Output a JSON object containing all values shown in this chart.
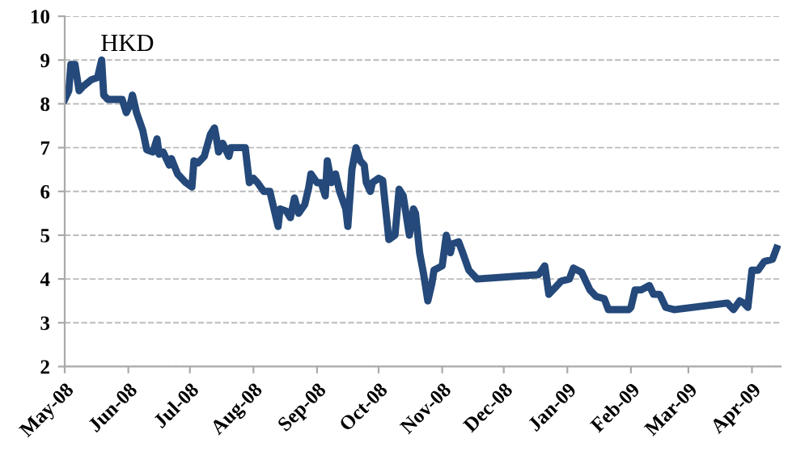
{
  "chart_data": {
    "type": "line",
    "annotations": [
      "HKD"
    ],
    "x": [
      "2008-05-01",
      "2008-05-03",
      "2008-05-04",
      "2008-05-06",
      "2008-05-08",
      "2008-05-10",
      "2008-05-14",
      "2008-05-17",
      "2008-05-19",
      "2008-05-20",
      "2008-05-22",
      "2008-05-25",
      "2008-05-29",
      "2008-05-31",
      "2008-06-02",
      "2008-06-03",
      "2008-06-05",
      "2008-06-08",
      "2008-06-10",
      "2008-06-13",
      "2008-06-15",
      "2008-06-16",
      "2008-06-18",
      "2008-06-21",
      "2008-06-22",
      "2008-06-25",
      "2008-06-29",
      "2008-07-02",
      "2008-07-03",
      "2008-07-05",
      "2008-07-08",
      "2008-07-11",
      "2008-07-13",
      "2008-07-14",
      "2008-07-15",
      "2008-07-17",
      "2008-07-20",
      "2008-07-21",
      "2008-07-24",
      "2008-07-28",
      "2008-07-30",
      "2008-08-01",
      "2008-08-03",
      "2008-08-06",
      "2008-08-09",
      "2008-08-13",
      "2008-08-14",
      "2008-08-17",
      "2008-08-19",
      "2008-08-21",
      "2008-08-23",
      "2008-08-26",
      "2008-08-28",
      "2008-08-29",
      "2008-09-01",
      "2008-09-03",
      "2008-09-05",
      "2008-09-06",
      "2008-09-08",
      "2008-09-10",
      "2008-09-12",
      "2008-09-15",
      "2008-09-16",
      "2008-09-18",
      "2008-09-20",
      "2008-09-22",
      "2008-09-24",
      "2008-09-25",
      "2008-09-27",
      "2008-09-28",
      "2008-10-01",
      "2008-10-03",
      "2008-10-06",
      "2008-10-09",
      "2008-10-11",
      "2008-10-13",
      "2008-10-16",
      "2008-10-18",
      "2008-10-19",
      "2008-10-21",
      "2008-10-23",
      "2008-10-25",
      "2008-10-27",
      "2008-10-28",
      "2008-11-01",
      "2008-11-03",
      "2008-11-05",
      "2008-11-06",
      "2008-11-09",
      "2008-11-11",
      "2008-11-14",
      "2008-11-18",
      "2008-12-18",
      "2008-12-21",
      "2008-12-23",
      "2008-12-26",
      "2008-12-29",
      "2009-01-02",
      "2009-01-04",
      "2009-01-08",
      "2009-01-12",
      "2009-01-15",
      "2009-01-19",
      "2009-01-21",
      "2009-01-31",
      "2009-02-01",
      "2009-02-03",
      "2009-02-06",
      "2009-02-10",
      "2009-02-12",
      "2009-02-15",
      "2009-02-18",
      "2009-02-22",
      "2009-03-20",
      "2009-03-23",
      "2009-03-26",
      "2009-03-28",
      "2009-03-30",
      "2009-04-01",
      "2009-04-04",
      "2009-04-07",
      "2009-04-11",
      "2009-04-13"
    ],
    "series": [
      {
        "color": "#24497a",
        "values": [
          8.1,
          8.3,
          8.9,
          8.9,
          8.3,
          8.4,
          8.55,
          8.6,
          9.0,
          8.2,
          8.1,
          8.1,
          8.1,
          7.8,
          8.0,
          8.2,
          7.8,
          7.4,
          6.95,
          6.9,
          7.2,
          6.85,
          6.9,
          6.6,
          6.75,
          6.4,
          6.2,
          6.1,
          6.7,
          6.65,
          6.8,
          7.3,
          7.45,
          7.2,
          6.9,
          7.1,
          6.8,
          7.0,
          7.0,
          7.0,
          6.2,
          6.3,
          6.2,
          6.0,
          6.0,
          5.2,
          5.6,
          5.55,
          5.4,
          5.85,
          5.5,
          5.7,
          6.1,
          6.4,
          6.2,
          6.2,
          5.9,
          6.7,
          6.2,
          6.4,
          6.0,
          5.6,
          5.2,
          6.5,
          7.0,
          6.7,
          6.6,
          6.2,
          6.0,
          6.2,
          6.3,
          6.25,
          4.9,
          5.0,
          6.05,
          5.9,
          5.0,
          5.6,
          5.5,
          4.6,
          4.1,
          3.5,
          3.9,
          4.2,
          4.3,
          5.0,
          4.6,
          4.8,
          4.85,
          4.6,
          4.2,
          4.0,
          4.1,
          4.3,
          3.65,
          3.8,
          3.95,
          4.0,
          4.25,
          4.15,
          3.75,
          3.6,
          3.55,
          3.3,
          3.3,
          3.35,
          3.75,
          3.75,
          3.85,
          3.65,
          3.65,
          3.35,
          3.3,
          3.45,
          3.3,
          3.5,
          3.45,
          3.35,
          4.2,
          4.2,
          4.4,
          4.45,
          4.7
        ]
      }
    ],
    "xlim": [
      "2008-05-01",
      "2009-04-15"
    ],
    "xticks": [
      {
        "value": "2008-05-01",
        "label": "May-08"
      },
      {
        "value": "2008-06-01",
        "label": "Jun-08"
      },
      {
        "value": "2008-07-01",
        "label": "Jul-08"
      },
      {
        "value": "2008-08-01",
        "label": "Aug-08"
      },
      {
        "value": "2008-09-01",
        "label": "Sep-08"
      },
      {
        "value": "2008-10-01",
        "label": "Oct-08"
      },
      {
        "value": "2008-11-01",
        "label": "Nov-08"
      },
      {
        "value": "2008-12-01",
        "label": "Dec-08"
      },
      {
        "value": "2009-01-01",
        "label": "Jan-09"
      },
      {
        "value": "2009-02-01",
        "label": "Feb-09"
      },
      {
        "value": "2009-03-01",
        "label": "Mar-09"
      },
      {
        "value": "2009-04-01",
        "label": "Apr-09"
      }
    ],
    "ylim": [
      2,
      10
    ],
    "yticks": [
      2,
      3,
      4,
      5,
      6,
      7,
      8,
      9,
      10
    ],
    "grid": "y",
    "legend": false,
    "marker": "none",
    "line_style": "solid"
  }
}
